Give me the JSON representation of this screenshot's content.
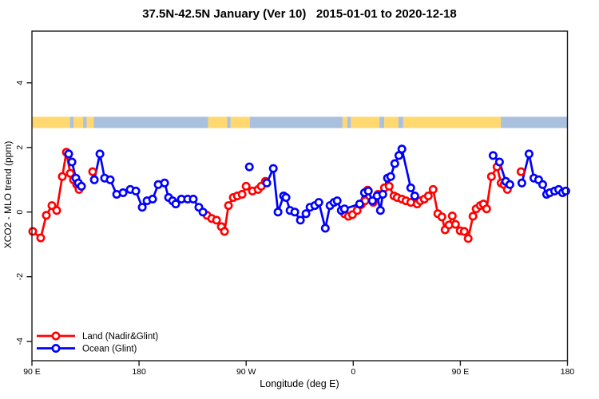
{
  "chart": {
    "title": "37.5N-42.5N January (Ver 10)   2015-01-01 to 2020-12-18",
    "xlabel": "Longitude (deg E)",
    "ylabel": "XCO2 - MLO trend (ppm)"
  },
  "chart_data": {
    "type": "line",
    "title": "37.5N-42.5N January (Ver 10)   2015-01-01 to 2020-12-18",
    "xlabel": "Longitude (deg E)",
    "ylabel": "XCO2 - MLO trend (ppm)",
    "grid": false,
    "x_axis": {
      "note": "x measured in degrees along axis; 0 = 90E at left edge, axis wraps eastward 450 degrees",
      "range": [
        0,
        450
      ],
      "ticks": [
        {
          "pos": 0,
          "label": "90 E"
        },
        {
          "pos": 90,
          "label": "180"
        },
        {
          "pos": 180,
          "label": "90 W"
        },
        {
          "pos": 270,
          "label": "0"
        },
        {
          "pos": 360,
          "label": "90 E"
        },
        {
          "pos": 450,
          "label": "180"
        }
      ]
    },
    "y_axis": {
      "range": [
        -4.6,
        5.6
      ],
      "ticks": [
        {
          "pos": -4,
          "label": "-4"
        },
        {
          "pos": -2,
          "label": "-2"
        },
        {
          "pos": 0,
          "label": "0"
        },
        {
          "pos": 2,
          "label": "2"
        },
        {
          "pos": 4,
          "label": "4"
        }
      ]
    },
    "map_band": {
      "y_range": [
        2.6,
        2.95
      ],
      "land_color": "#FFD870",
      "ocean_color": "#A9C0DF",
      "segments": [
        {
          "from": 0,
          "to": 32,
          "type": "land"
        },
        {
          "from": 32,
          "to": 35,
          "type": "ocean"
        },
        {
          "from": 35,
          "to": 43,
          "type": "land"
        },
        {
          "from": 43,
          "to": 46,
          "type": "ocean"
        },
        {
          "from": 46,
          "to": 52,
          "type": "land"
        },
        {
          "from": 52,
          "to": 148,
          "type": "ocean"
        },
        {
          "from": 148,
          "to": 164,
          "type": "land"
        },
        {
          "from": 164,
          "to": 167,
          "type": "ocean"
        },
        {
          "from": 167,
          "to": 183,
          "type": "land"
        },
        {
          "from": 183,
          "to": 261,
          "type": "ocean"
        },
        {
          "from": 261,
          "to": 265,
          "type": "land"
        },
        {
          "from": 265,
          "to": 268,
          "type": "ocean"
        },
        {
          "from": 268,
          "to": 292,
          "type": "land"
        },
        {
          "from": 292,
          "to": 296,
          "type": "ocean"
        },
        {
          "from": 296,
          "to": 308,
          "type": "land"
        },
        {
          "from": 308,
          "to": 312,
          "type": "ocean"
        },
        {
          "from": 312,
          "to": 394,
          "type": "land"
        },
        {
          "from": 394,
          "to": 450,
          "type": "ocean"
        }
      ]
    },
    "series": [
      {
        "name": "Land (Nadir&Glint)",
        "color": "#FF0000",
        "segments": [
          [
            [
              0.7,
              -0.6
            ],
            [
              7.4,
              -0.8
            ],
            [
              12.1,
              -0.1
            ],
            [
              16.8,
              0.2
            ],
            [
              20.8,
              0.05
            ],
            [
              25.5,
              1.1
            ],
            [
              28.9,
              1.85
            ],
            [
              32.2,
              1.2
            ],
            [
              34.9,
              1.0
            ],
            [
              37.6,
              0.85
            ],
            [
              39.6,
              0.7
            ]
          ],
          [
            [
              51.0,
              1.25
            ]
          ],
          [
            [
              147.1,
              -0.1
            ],
            [
              151.1,
              -0.2
            ],
            [
              155.1,
              -0.25
            ],
            [
              159.1,
              -0.45
            ],
            [
              161.8,
              -0.6
            ],
            [
              165.2,
              0.2
            ],
            [
              169.2,
              0.45
            ],
            [
              172.6,
              0.5
            ],
            [
              176.6,
              0.55
            ],
            [
              180.0,
              0.8
            ],
            [
              185.3,
              0.65
            ],
            [
              190.1,
              0.7
            ],
            [
              192.7,
              0.8
            ],
            [
              196.1,
              0.95
            ]
          ],
          [
            [
              262.6,
              -0.05
            ],
            [
              265.9,
              -0.13
            ],
            [
              269.3,
              -0.08
            ],
            [
              273.3,
              0.05
            ],
            [
              276.7,
              0.23
            ],
            [
              280.0,
              0.35
            ],
            [
              282.1,
              0.68
            ],
            [
              286.8,
              0.3
            ],
            [
              290.8,
              0.55
            ],
            [
              296.2,
              0.75
            ],
            [
              300.2,
              0.8
            ],
            [
              304.2,
              0.5
            ],
            [
              306.9,
              0.45
            ],
            [
              310.9,
              0.4
            ],
            [
              314.3,
              0.35
            ],
            [
              318.3,
              0.3
            ],
            [
              323.7,
              0.25
            ],
            [
              326.4,
              0.35
            ],
            [
              329.7,
              0.4
            ],
            [
              333.1,
              0.5
            ],
            [
              337.1,
              0.7
            ],
            [
              341.1,
              -0.05
            ],
            [
              344.5,
              -0.15
            ],
            [
              347.2,
              -0.55
            ],
            [
              350.5,
              -0.4
            ],
            [
              353.2,
              -0.12
            ],
            [
              355.9,
              -0.38
            ],
            [
              359.9,
              -0.58
            ],
            [
              363.3,
              -0.6
            ],
            [
              366.6,
              -0.82
            ],
            [
              370.6,
              -0.13
            ],
            [
              373.3,
              0.1
            ],
            [
              376.7,
              0.2
            ],
            [
              379.4,
              0.25
            ],
            [
              382.1,
              0.1
            ],
            [
              386.1,
              1.1
            ],
            [
              390.8,
              1.4
            ],
            [
              394.2,
              0.9
            ],
            [
              396.8,
              0.85
            ],
            [
              399.5,
              0.7
            ]
          ],
          [
            [
              411.0,
              1.25
            ]
          ]
        ]
      },
      {
        "name": "Ocean (Glint)",
        "color": "#0000FF",
        "segments": [
          [
            [
              30.9,
              1.8
            ],
            [
              33.6,
              1.55
            ],
            [
              36.9,
              1.05
            ],
            [
              39.0,
              0.9
            ],
            [
              41.6,
              0.8
            ]
          ],
          [
            [
              52.4,
              1.0
            ],
            [
              57.1,
              1.8
            ],
            [
              61.1,
              1.05
            ],
            [
              65.8,
              1.0
            ],
            [
              71.2,
              0.55
            ],
            [
              76.6,
              0.6
            ],
            [
              82.6,
              0.7
            ],
            [
              87.3,
              0.65
            ],
            [
              92.7,
              0.15
            ],
            [
              96.7,
              0.35
            ],
            [
              101.4,
              0.4
            ],
            [
              106.1,
              0.85
            ],
            [
              111.5,
              0.9
            ],
            [
              114.8,
              0.45
            ],
            [
              118.2,
              0.35
            ],
            [
              120.9,
              0.25
            ],
            [
              125.6,
              0.4
            ],
            [
              130.9,
              0.4
            ],
            [
              135.6,
              0.4
            ],
            [
              140.3,
              0.15
            ],
            [
              143.7,
              0.0
            ]
          ],
          [
            [
              182.7,
              1.4
            ]
          ],
          [
            [
              197.4,
              0.9
            ],
            [
              202.8,
              1.35
            ],
            [
              206.8,
              0.0
            ],
            [
              211.5,
              0.5
            ],
            [
              213.5,
              0.45
            ],
            [
              216.9,
              0.05
            ],
            [
              220.9,
              0.0
            ],
            [
              225.6,
              -0.25
            ],
            [
              230.3,
              -0.05
            ],
            [
              233.7,
              0.15
            ],
            [
              237.7,
              0.2
            ],
            [
              241.1,
              0.3
            ],
            [
              246.5,
              -0.5
            ],
            [
              250.5,
              0.2
            ],
            [
              253.8,
              0.3
            ],
            [
              256.5,
              0.35
            ],
            [
              259.9,
              0.05
            ],
            [
              262.6,
              0.1
            ],
            [
              275.4,
              0.25
            ],
            [
              279.4,
              0.6
            ],
            [
              282.7,
              0.65
            ],
            [
              286.1,
              0.35
            ],
            [
              290.1,
              0.5
            ],
            [
              292.8,
              0.05
            ],
            [
              294.8,
              0.55
            ],
            [
              298.8,
              1.05
            ],
            [
              301.5,
              1.1
            ],
            [
              304.9,
              1.5
            ],
            [
              308.3,
              1.75
            ],
            [
              310.9,
              1.95
            ],
            [
              318.3,
              0.75
            ],
            [
              321.7,
              0.5
            ]
          ],
          [
            [
              387.5,
              1.75
            ],
            [
              392.9,
              1.55
            ],
            [
              398.2,
              0.95
            ],
            [
              401.6,
              0.85
            ]
          ],
          [
            [
              411.7,
              0.9
            ],
            [
              417.7,
              1.8
            ],
            [
              421.8,
              1.05
            ],
            [
              425.8,
              1.0
            ],
            [
              429.2,
              0.85
            ],
            [
              432.5,
              0.55
            ],
            [
              435.2,
              0.6
            ],
            [
              439.2,
              0.65
            ],
            [
              442.6,
              0.7
            ],
            [
              445.9,
              0.6
            ],
            [
              448.6,
              0.65
            ]
          ]
        ]
      }
    ],
    "legend": {
      "position": "bottom-left",
      "entries": [
        "Land (Nadir&Glint)",
        "Ocean (Glint)"
      ]
    },
    "style": {
      "axis_color": "#1a1a1a",
      "marker": "open-circle",
      "marker_radius": 4.2,
      "line_width": 2.7
    }
  }
}
